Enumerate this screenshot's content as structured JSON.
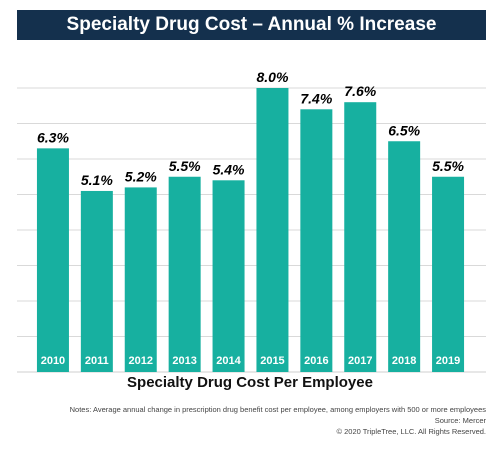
{
  "title": "Specialty Drug Cost – Annual % Increase",
  "colors": {
    "bar": "#17b0a0",
    "title_bg": "#14304d",
    "grid": "#d9d9d9"
  },
  "chart_data": {
    "type": "bar",
    "categories": [
      "2010",
      "2011",
      "2012",
      "2013",
      "2014",
      "2015",
      "2016",
      "2017",
      "2018",
      "2019"
    ],
    "values": [
      6.3,
      5.1,
      5.2,
      5.5,
      5.4,
      8.0,
      7.4,
      7.6,
      6.5,
      5.5
    ],
    "value_labels": [
      "6.3%",
      "5.1%",
      "5.2%",
      "5.5%",
      "5.4%",
      "8.0%",
      "7.4%",
      "7.6%",
      "6.5%",
      "5.5%"
    ],
    "xlabel": "Specialty Drug Cost Per Employee",
    "ylabel": "",
    "ylim": [
      0,
      8
    ],
    "grid": true
  },
  "notes": {
    "line1": "Notes: Average annual change in prescription drug benefit cost per employee, among employers with 500 or more employees",
    "line2": "Source: Mercer",
    "line3": "© 2020 TripleTree, LLC. All Rights Reserved."
  }
}
